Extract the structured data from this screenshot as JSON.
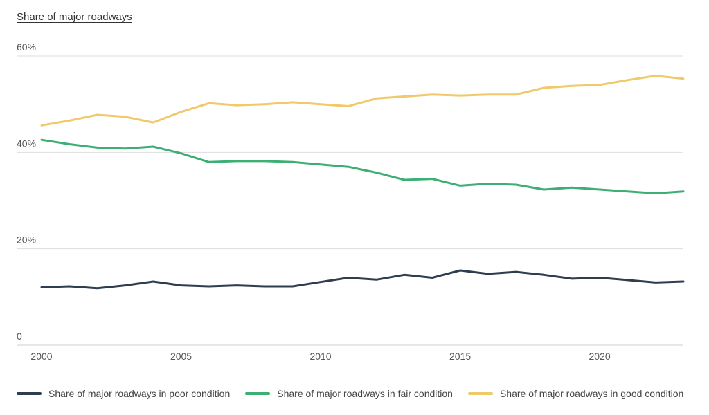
{
  "chart_data": {
    "type": "line",
    "title": "Share of major roadways",
    "xlabel": "",
    "ylabel": "",
    "xlim": [
      2000,
      2023
    ],
    "ylim": [
      0,
      60
    ],
    "x_ticks": [
      2000,
      2005,
      2010,
      2015,
      2020
    ],
    "y_ticks": [
      {
        "value": 0,
        "label": "0"
      },
      {
        "value": 20,
        "label": "20%"
      },
      {
        "value": 40,
        "label": "40%"
      },
      {
        "value": 60,
        "label": "60%"
      }
    ],
    "grid": "horizontal",
    "legend_position": "bottom",
    "x": [
      2000,
      2001,
      2002,
      2003,
      2004,
      2005,
      2006,
      2007,
      2008,
      2009,
      2010,
      2011,
      2012,
      2013,
      2014,
      2015,
      2016,
      2017,
      2018,
      2019,
      2020,
      2021,
      2022,
      2023
    ],
    "series": [
      {
        "name": "Share of major roadways in poor condition",
        "color": "#2f3e4e",
        "values": [
          12.0,
          12.2,
          11.8,
          12.4,
          13.2,
          12.4,
          12.2,
          12.4,
          12.2,
          12.2,
          13.1,
          14.0,
          13.6,
          14.6,
          14.0,
          15.5,
          14.8,
          15.2,
          14.6,
          13.8,
          14.0,
          13.5,
          13.0,
          13.2
        ]
      },
      {
        "name": "Share of major roadways in fair condition",
        "color": "#3dae74",
        "values": [
          42.6,
          41.7,
          41.0,
          40.8,
          41.2,
          39.8,
          38.0,
          38.2,
          38.2,
          38.0,
          37.5,
          37.0,
          35.8,
          34.3,
          34.5,
          33.1,
          33.5,
          33.3,
          32.3,
          32.7,
          32.3,
          31.9,
          31.5,
          31.9
        ]
      },
      {
        "name": "Share of major roadways in good condition",
        "color": "#efc96a",
        "values": [
          45.6,
          46.6,
          47.8,
          47.4,
          46.2,
          48.4,
          50.2,
          49.8,
          50.0,
          50.4,
          50.0,
          49.6,
          51.2,
          51.6,
          52.0,
          51.8,
          52.0,
          52.0,
          53.4,
          53.8,
          54.0,
          55.0,
          55.9,
          55.3
        ]
      }
    ]
  }
}
